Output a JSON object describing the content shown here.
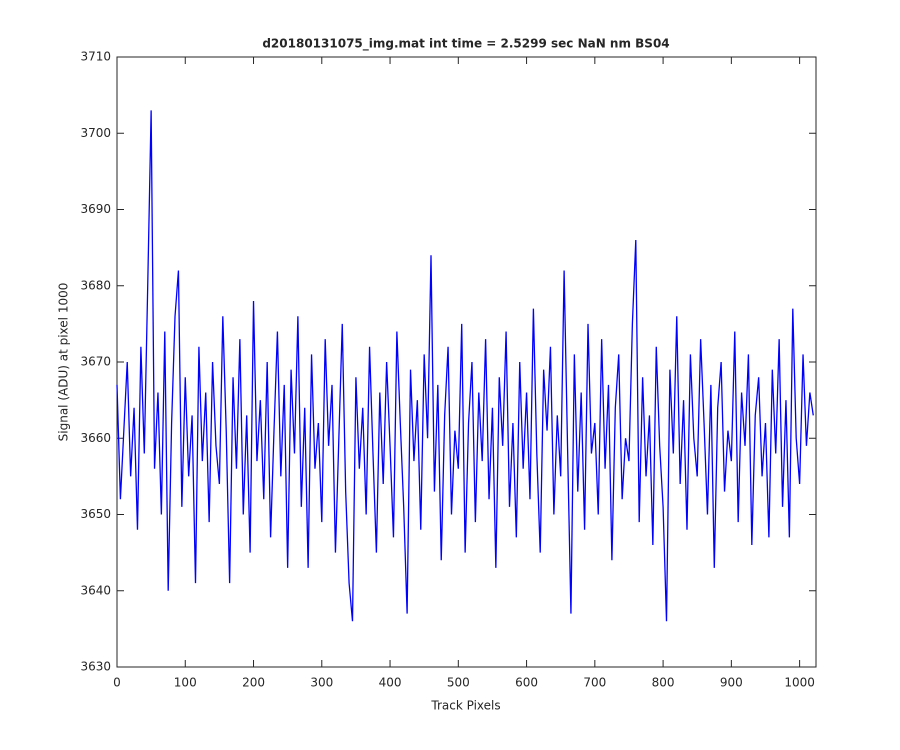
{
  "chart_data": {
    "type": "line",
    "title": "d20180131075_img.mat int time = 2.5299 sec  NaN nm BS04",
    "x_label": "Track Pixels",
    "y_label": "Signal (ADU) at pixel 1000",
    "xlim": [
      0,
      1024
    ],
    "ylim": [
      3630,
      3710
    ],
    "xticks": [
      0,
      100,
      200,
      300,
      400,
      500,
      600,
      700,
      800,
      900,
      1000
    ],
    "yticks": [
      3630,
      3640,
      3650,
      3660,
      3670,
      3680,
      3690,
      3700,
      3710
    ],
    "grid": false,
    "x": [
      0,
      5,
      10,
      15,
      20,
      25,
      30,
      35,
      40,
      45,
      50,
      55,
      60,
      65,
      70,
      75,
      80,
      85,
      90,
      95,
      100,
      105,
      110,
      115,
      120,
      125,
      130,
      135,
      140,
      145,
      150,
      155,
      160,
      165,
      170,
      175,
      180,
      185,
      190,
      195,
      200,
      205,
      210,
      215,
      220,
      225,
      230,
      235,
      240,
      245,
      250,
      255,
      260,
      265,
      270,
      275,
      280,
      285,
      290,
      295,
      300,
      305,
      310,
      315,
      320,
      325,
      330,
      335,
      340,
      345,
      350,
      355,
      360,
      365,
      370,
      375,
      380,
      385,
      390,
      395,
      400,
      405,
      410,
      415,
      420,
      425,
      430,
      435,
      440,
      445,
      450,
      455,
      460,
      465,
      470,
      475,
      480,
      485,
      490,
      495,
      500,
      505,
      510,
      515,
      520,
      525,
      530,
      535,
      540,
      545,
      550,
      555,
      560,
      565,
      570,
      575,
      580,
      585,
      590,
      595,
      600,
      605,
      610,
      615,
      620,
      625,
      630,
      635,
      640,
      645,
      650,
      655,
      660,
      665,
      670,
      675,
      680,
      685,
      690,
      695,
      700,
      705,
      710,
      715,
      720,
      725,
      730,
      735,
      740,
      745,
      750,
      755,
      760,
      765,
      770,
      775,
      780,
      785,
      790,
      795,
      800,
      805,
      810,
      815,
      820,
      825,
      830,
      835,
      840,
      845,
      850,
      855,
      860,
      865,
      870,
      875,
      880,
      885,
      890,
      895,
      900,
      905,
      910,
      915,
      920,
      925,
      930,
      935,
      940,
      945,
      950,
      955,
      960,
      965,
      970,
      975,
      980,
      985,
      990,
      995,
      1000,
      1005,
      1010,
      1015,
      1020
    ],
    "series": [
      {
        "color": "#0000ff",
        "values": [
          3667,
          3652,
          3661,
          3670,
          3655,
          3664,
          3648,
          3672,
          3658,
          3680,
          3703,
          3656,
          3666,
          3650,
          3674,
          3640,
          3662,
          3676,
          3682,
          3651,
          3668,
          3655,
          3663,
          3641,
          3672,
          3657,
          3666,
          3649,
          3670,
          3659,
          3654,
          3676,
          3661,
          3641,
          3668,
          3656,
          3673,
          3650,
          3663,
          3645,
          3678,
          3657,
          3665,
          3652,
          3670,
          3647,
          3661,
          3674,
          3655,
          3667,
          3643,
          3669,
          3658,
          3676,
          3651,
          3664,
          3643,
          3671,
          3656,
          3662,
          3649,
          3673,
          3659,
          3667,
          3645,
          3660,
          3675,
          3653,
          3641,
          3636,
          3668,
          3656,
          3664,
          3650,
          3672,
          3658,
          3645,
          3666,
          3654,
          3670,
          3659,
          3647,
          3674,
          3662,
          3651,
          3637,
          3669,
          3657,
          3665,
          3648,
          3671,
          3660,
          3684,
          3653,
          3667,
          3644,
          3663,
          3672,
          3650,
          3661,
          3656,
          3675,
          3645,
          3662,
          3670,
          3649,
          3666,
          3657,
          3673,
          3652,
          3664,
          3643,
          3668,
          3659,
          3674,
          3651,
          3662,
          3647,
          3670,
          3656,
          3666,
          3652,
          3677,
          3658,
          3645,
          3669,
          3661,
          3672,
          3650,
          3663,
          3655,
          3682,
          3659,
          3637,
          3671,
          3653,
          3666,
          3648,
          3675,
          3658,
          3662,
          3650,
          3673,
          3656,
          3667,
          3644,
          3664,
          3671,
          3652,
          3660,
          3657,
          3675,
          3686,
          3649,
          3668,
          3655,
          3663,
          3646,
          3672,
          3659,
          3651,
          3636,
          3669,
          3658,
          3676,
          3654,
          3665,
          3648,
          3671,
          3660,
          3655,
          3673,
          3662,
          3650,
          3667,
          3643,
          3664,
          3670,
          3653,
          3661,
          3657,
          3674,
          3649,
          3666,
          3659,
          3671,
          3646,
          3663,
          3668,
          3655,
          3662,
          3647,
          3669,
          3658,
          3673,
          3651,
          3665,
          3647,
          3677,
          3660,
          3654,
          3671,
          3659,
          3666,
          3663
        ]
      }
    ]
  }
}
